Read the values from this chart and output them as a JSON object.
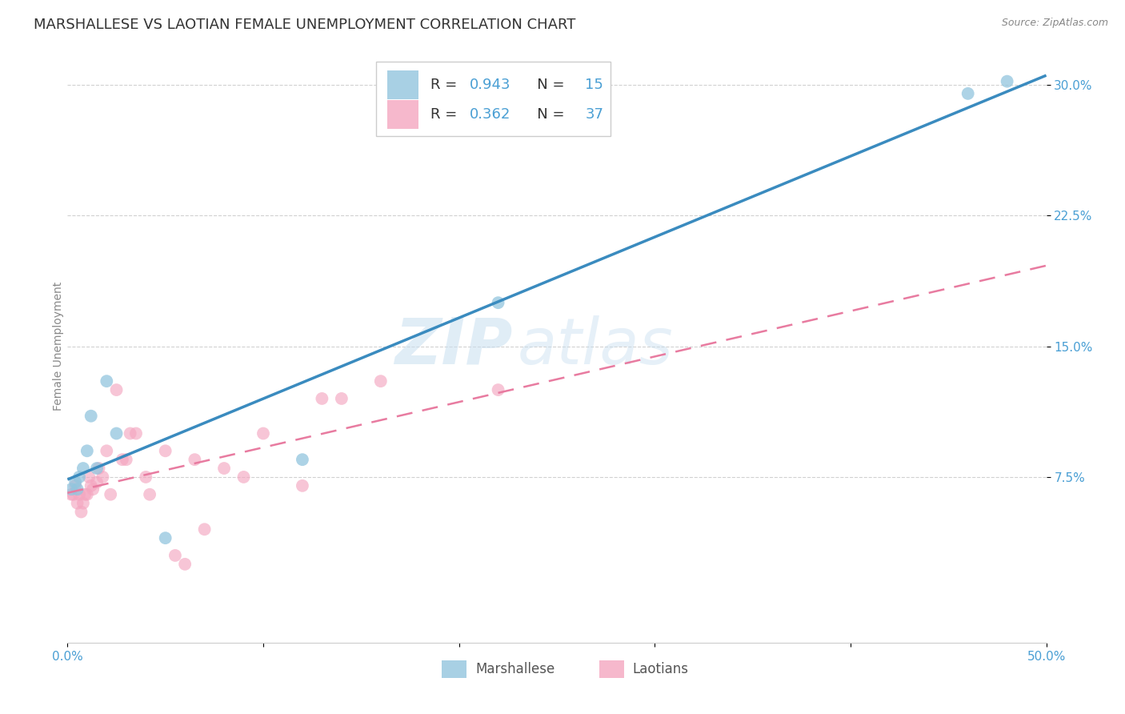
{
  "title": "MARSHALLESE VS LAOTIAN FEMALE UNEMPLOYMENT CORRELATION CHART",
  "source": "Source: ZipAtlas.com",
  "ylabel": "Female Unemployment",
  "xlim": [
    0.0,
    0.5
  ],
  "ylim": [
    -0.02,
    0.32
  ],
  "blue_color": "#92c5de",
  "pink_color": "#f4a6c0",
  "line_blue": "#3a8bbf",
  "line_pink": "#e87ba0",
  "watermark_zip": "ZIP",
  "watermark_atlas": "atlas",
  "legend_R1": "0.943",
  "legend_N1": "15",
  "legend_R2": "0.362",
  "legend_N2": "37",
  "marshallese_x": [
    0.002,
    0.004,
    0.005,
    0.006,
    0.008,
    0.01,
    0.012,
    0.015,
    0.02,
    0.025,
    0.05,
    0.12,
    0.22,
    0.46,
    0.48
  ],
  "marshallese_y": [
    0.068,
    0.072,
    0.068,
    0.075,
    0.08,
    0.09,
    0.11,
    0.08,
    0.13,
    0.1,
    0.04,
    0.085,
    0.175,
    0.295,
    0.302
  ],
  "laotian_x": [
    0.002,
    0.003,
    0.004,
    0.005,
    0.006,
    0.007,
    0.008,
    0.009,
    0.01,
    0.011,
    0.012,
    0.013,
    0.015,
    0.016,
    0.018,
    0.02,
    0.022,
    0.025,
    0.028,
    0.03,
    0.032,
    0.035,
    0.04,
    0.042,
    0.05,
    0.055,
    0.06,
    0.065,
    0.07,
    0.08,
    0.09,
    0.1,
    0.12,
    0.13,
    0.14,
    0.16,
    0.22
  ],
  "laotian_y": [
    0.065,
    0.065,
    0.07,
    0.06,
    0.065,
    0.055,
    0.06,
    0.065,
    0.065,
    0.075,
    0.07,
    0.068,
    0.072,
    0.08,
    0.075,
    0.09,
    0.065,
    0.125,
    0.085,
    0.085,
    0.1,
    0.1,
    0.075,
    0.065,
    0.09,
    0.03,
    0.025,
    0.085,
    0.045,
    0.08,
    0.075,
    0.1,
    0.07,
    0.12,
    0.12,
    0.13,
    0.125
  ],
  "title_fontsize": 13,
  "axis_label_fontsize": 10,
  "tick_fontsize": 11
}
